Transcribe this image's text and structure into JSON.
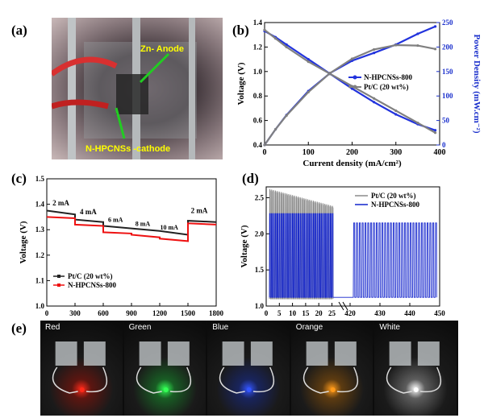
{
  "panels": {
    "a": {
      "letter": "(a)",
      "anode_label": "Zn- Anode",
      "cathode_label": "N-HPCNSs -cathode"
    },
    "e": {
      "letter": "(e)",
      "colors": [
        {
          "label": "Red",
          "led_color": "#ff2a1a"
        },
        {
          "label": "Green",
          "led_color": "#33ff55"
        },
        {
          "label": "Blue",
          "led_color": "#3355ff"
        },
        {
          "label": "Orange",
          "led_color": "#ff9a1a"
        },
        {
          "label": "White",
          "led_color": "#ffffff"
        }
      ]
    }
  },
  "chart_data": [
    {
      "id": "b",
      "letter": "(b)",
      "type": "line",
      "xlabel": "Current density (mA/cm²)",
      "ylabel_left": "Voltage (V)",
      "ylabel_right": "Power Density (mW.cm⁻²)",
      "xlim": [
        0,
        400
      ],
      "ylim_left": [
        0.4,
        1.4
      ],
      "ylim_right": [
        0,
        250
      ],
      "xticks": [
        0,
        100,
        200,
        300,
        400
      ],
      "yticks_left": [
        0.4,
        0.6,
        0.8,
        1.0,
        1.2,
        1.4
      ],
      "yticks_right": [
        0,
        50,
        100,
        150,
        200,
        250
      ],
      "legend_position": "middle-right",
      "series": [
        {
          "name": "N-HPCNSs-800",
          "color": "#2233dd",
          "axis": "left",
          "x": [
            0,
            25,
            50,
            100,
            150,
            200,
            250,
            300,
            350,
            390
          ],
          "y": [
            1.33,
            1.28,
            1.22,
            1.1,
            0.98,
            0.86,
            0.75,
            0.65,
            0.57,
            0.52
          ]
        },
        {
          "name": "Pt/C (20 wt%)",
          "color": "#808080",
          "axis": "left",
          "x": [
            0,
            25,
            50,
            100,
            150,
            200,
            250,
            300,
            350,
            390
          ],
          "y": [
            1.34,
            1.27,
            1.2,
            1.08,
            0.98,
            0.88,
            0.78,
            0.68,
            0.58,
            0.5
          ]
        },
        {
          "name": "N-HPCNSs-800 power",
          "color": "#2233dd",
          "axis": "right",
          "x": [
            0,
            25,
            50,
            100,
            150,
            200,
            250,
            300,
            350,
            390
          ],
          "y": [
            0,
            32,
            61,
            110,
            147,
            172,
            188,
            205,
            227,
            242
          ]
        },
        {
          "name": "Pt/C power",
          "color": "#808080",
          "axis": "right",
          "x": [
            0,
            25,
            50,
            100,
            150,
            200,
            250,
            300,
            350,
            390
          ],
          "y": [
            0,
            32,
            60,
            108,
            147,
            176,
            195,
            204,
            203,
            196
          ]
        }
      ]
    },
    {
      "id": "c",
      "letter": "(c)",
      "type": "line",
      "xlabel": "",
      "ylabel": "Voltage (V)",
      "xlim": [
        0,
        1800
      ],
      "ylim": [
        1.0,
        1.5
      ],
      "xticks": [
        0,
        300,
        600,
        900,
        1200,
        1500,
        1800
      ],
      "yticks": [
        1.0,
        1.1,
        1.2,
        1.3,
        1.4,
        1.5
      ],
      "legend_position": "lower-left",
      "annotations": [
        {
          "text": "2 mA",
          "x": 150,
          "y": 1.395
        },
        {
          "text": "4 mA",
          "x": 440,
          "y": 1.36
        },
        {
          "text": "6 mA",
          "x": 730,
          "y": 1.33
        },
        {
          "text": "8 mA",
          "x": 1020,
          "y": 1.315
        },
        {
          "text": "10 mA",
          "x": 1300,
          "y": 1.3
        },
        {
          "text": "2 mA",
          "x": 1620,
          "y": 1.365
        }
      ],
      "series": [
        {
          "name": "Pt/C (20 wt%)",
          "color": "#222222",
          "x": [
            0,
            300,
            300,
            600,
            600,
            900,
            900,
            1200,
            1200,
            1500,
            1500,
            1800
          ],
          "y": [
            1.375,
            1.36,
            1.34,
            1.33,
            1.315,
            1.305,
            1.305,
            1.295,
            1.295,
            1.28,
            1.335,
            1.33
          ]
        },
        {
          "name": "N-HPCNSs-800",
          "color": "#ee1111",
          "x": [
            0,
            300,
            300,
            600,
            600,
            900,
            900,
            1200,
            1200,
            1500,
            1500,
            1800
          ],
          "y": [
            1.35,
            1.345,
            1.32,
            1.315,
            1.29,
            1.285,
            1.28,
            1.27,
            1.265,
            1.255,
            1.325,
            1.32
          ]
        }
      ]
    },
    {
      "id": "d",
      "letter": "(d)",
      "type": "line",
      "xlabel": "",
      "ylabel": "Voltage (V)",
      "ylim": [
        1.0,
        2.65
      ],
      "yticks": [
        1.0,
        1.5,
        2.0,
        2.5
      ],
      "xticks_left": [
        0,
        5,
        10,
        15,
        20,
        25,
        420
      ],
      "xticks_right": [
        420,
        430,
        440,
        450
      ],
      "x_break": true,
      "legend_position": "top-right",
      "series": [
        {
          "name": "Pt/C (20 wt%)",
          "color": "#8a8a8a",
          "charge_voltage_start": 2.62,
          "charge_voltage_end": 2.38,
          "discharge_voltage": 1.1
        },
        {
          "name": "N-HPCNSs-800",
          "color": "#1122cc",
          "charge_voltage": 2.28,
          "charge_voltage_late": 2.15,
          "discharge_voltage": 1.12
        }
      ]
    }
  ]
}
